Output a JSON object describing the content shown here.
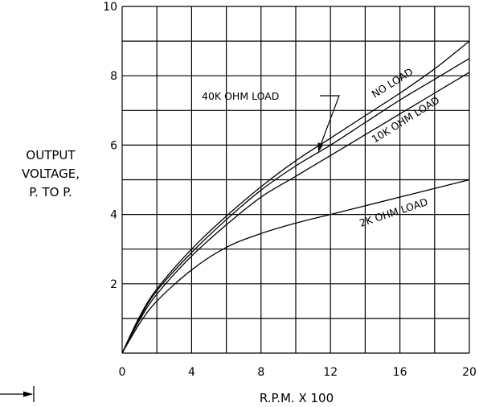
{
  "chart_data": {
    "type": "line",
    "xlabel": "R.P.M. X 100",
    "ylabel_lines": [
      "OUTPUT",
      "VOLTAGE,",
      "P. TO P."
    ],
    "xlim": [
      0,
      20
    ],
    "ylim": [
      0,
      10
    ],
    "x_ticks": [
      "0",
      "4",
      "8",
      "12",
      "16",
      "20"
    ],
    "y_ticks": [
      "2",
      "4",
      "6",
      "8",
      "10"
    ],
    "grid": true,
    "series": [
      {
        "name": "NO LOAD",
        "x": [
          0,
          1,
          2,
          4,
          6,
          8,
          10,
          12,
          14,
          16,
          18,
          20
        ],
        "y": [
          0,
          1.05,
          1.85,
          3.0,
          3.95,
          4.8,
          5.55,
          6.2,
          6.85,
          7.5,
          8.2,
          9.0
        ]
      },
      {
        "name": "40K OHM LOAD",
        "x": [
          0,
          1,
          2,
          4,
          6,
          8,
          10,
          12,
          14,
          16,
          18,
          20
        ],
        "y": [
          0,
          1.0,
          1.8,
          2.9,
          3.85,
          4.7,
          5.4,
          6.0,
          6.65,
          7.3,
          7.9,
          8.5
        ]
      },
      {
        "name": "10K OHM LOAD",
        "x": [
          0,
          1,
          2,
          4,
          6,
          8,
          10,
          12,
          14,
          16,
          18,
          20
        ],
        "y": [
          0,
          0.95,
          1.7,
          2.8,
          3.7,
          4.5,
          5.1,
          5.7,
          6.3,
          6.9,
          7.5,
          8.1
        ]
      },
      {
        "name": "2K OHM LOAD",
        "x": [
          0,
          1,
          2,
          4,
          6,
          8,
          10,
          12,
          14,
          16,
          18,
          20
        ],
        "y": [
          0,
          0.85,
          1.5,
          2.4,
          3.05,
          3.45,
          3.75,
          4.0,
          4.25,
          4.5,
          4.75,
          5.0
        ]
      }
    ]
  }
}
